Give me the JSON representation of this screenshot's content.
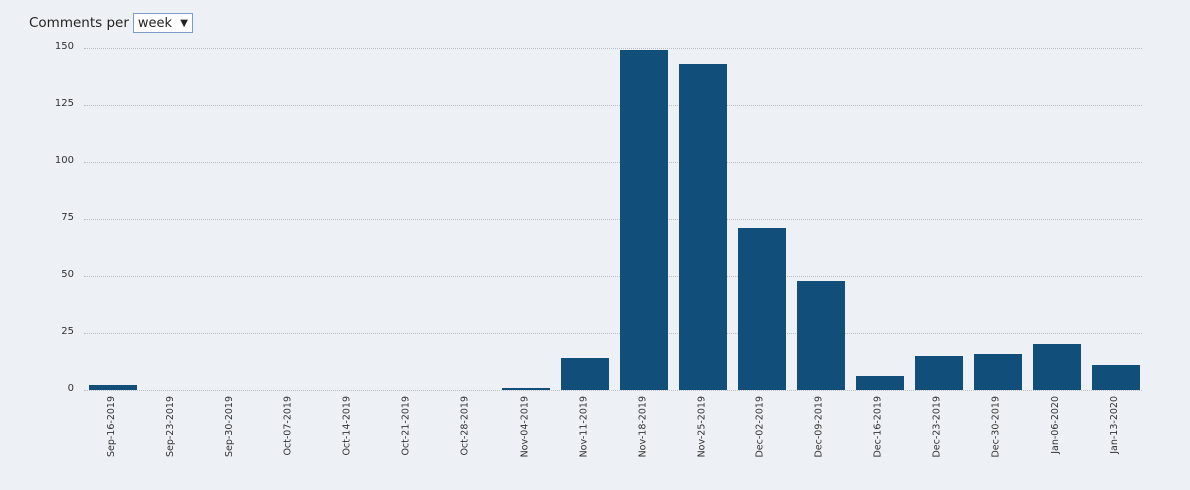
{
  "controls": {
    "label": "Comments per",
    "select_value": "week",
    "select_arrow": "▼"
  },
  "chart_data": {
    "type": "bar",
    "title": "Comments per week",
    "xlabel": "",
    "ylabel": "",
    "ylim": [
      0,
      150
    ],
    "yticks": [
      0,
      25,
      50,
      75,
      100,
      125,
      150
    ],
    "grid": true,
    "bar_color": "#114e7a",
    "background": "#edf0f5",
    "categories": [
      "Sep-16-2019",
      "Sep-23-2019",
      "Sep-30-2019",
      "Oct-07-2019",
      "Oct-14-2019",
      "Oct-21-2019",
      "Oct-28-2019",
      "Nov-04-2019",
      "Nov-11-2019",
      "Nov-18-2019",
      "Nov-25-2019",
      "Dec-02-2019",
      "Dec-09-2019",
      "Dec-16-2019",
      "Dec-23-2019",
      "Dec-30-2019",
      "Jan-06-2020",
      "Jan-13-2020"
    ],
    "values": [
      2,
      0,
      0,
      0,
      0,
      0,
      0,
      1,
      14,
      149,
      143,
      71,
      48,
      6,
      15,
      16,
      20,
      11
    ]
  }
}
